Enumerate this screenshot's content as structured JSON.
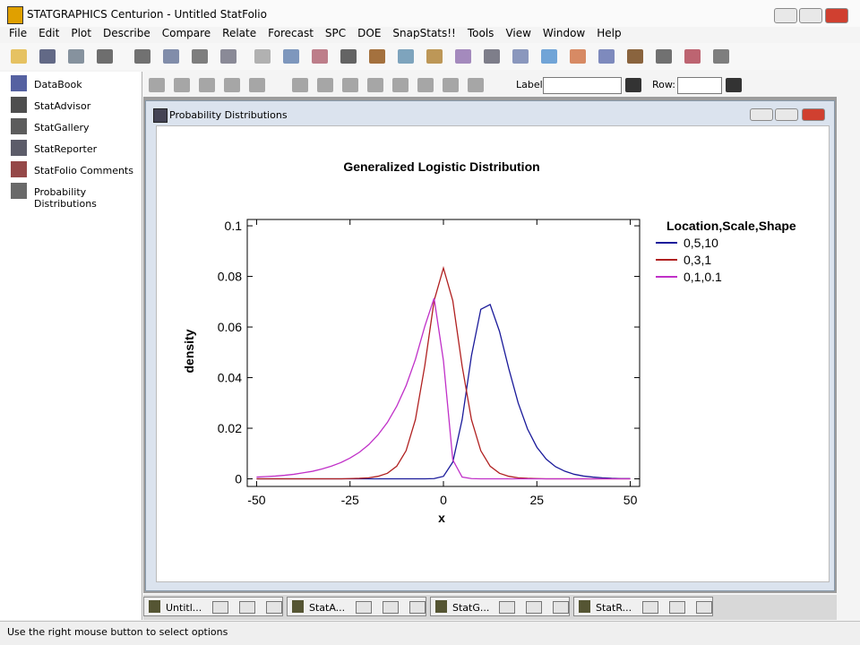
{
  "window": {
    "title": "STATGRAPHICS Centurion - Untitled StatFolio"
  },
  "menu": [
    "File",
    "Edit",
    "Plot",
    "Describe",
    "Compare",
    "Relate",
    "Forecast",
    "SPC",
    "DOE",
    "SnapStats!!",
    "Tools",
    "View",
    "Window",
    "Help"
  ],
  "sidebar": [
    "DataBook",
    "StatAdvisor",
    "StatGallery",
    "StatReporter",
    "StatFolio Comments",
    "Probability Distributions"
  ],
  "toolbar": {
    "label": "Label:",
    "row": "Row:"
  },
  "child_window": {
    "title": "Probability Distributions"
  },
  "chart_data": {
    "type": "line",
    "title": "Generalized Logistic Distribution",
    "x_label": "x",
    "y_label": "density",
    "legend_title": "Location,Scale,Shape",
    "legend": "right",
    "x": [
      -50,
      -47.5,
      -45,
      -42.5,
      -40,
      -37.5,
      -35,
      -32.5,
      -30,
      -27.5,
      -25,
      -22.5,
      -20,
      -17.5,
      -15,
      -12.5,
      -10,
      -7.5,
      -5,
      -2.5,
      0,
      2.5,
      5,
      7.5,
      10,
      12.5,
      15,
      17.5,
      20,
      22.5,
      25,
      27.5,
      30,
      32.5,
      35,
      37.5,
      40,
      42.5,
      45,
      47.5,
      50
    ],
    "series": [
      {
        "name": "0,5,10",
        "color": "#1a1a9a",
        "values": [
          0,
          0,
          0,
          0,
          0,
          0,
          0,
          0,
          0,
          0,
          0,
          0,
          0,
          0,
          0,
          0,
          0,
          0,
          0,
          0.0001,
          0.001,
          0.0066,
          0.0234,
          0.0487,
          0.067,
          0.0689,
          0.0583,
          0.0435,
          0.03,
          0.0197,
          0.0125,
          0.0078,
          0.0048,
          0.003,
          0.0018,
          0.0011,
          0.0007,
          0.0004,
          0.0002,
          0.0001,
          0.0001
        ]
      },
      {
        "name": "0,3,1",
        "color": "#b02020",
        "values": [
          0,
          0,
          0,
          0,
          0,
          0,
          0,
          0,
          0,
          0,
          0.0001,
          0.0002,
          0.0004,
          0.001,
          0.0022,
          0.005,
          0.0111,
          0.0234,
          0.0446,
          0.0704,
          0.0833,
          0.0704,
          0.0446,
          0.0234,
          0.0111,
          0.005,
          0.0022,
          0.001,
          0.0004,
          0.0002,
          0.0001,
          0,
          0,
          0,
          0,
          0,
          0,
          0,
          0,
          0,
          0
        ]
      },
      {
        "name": "0,1,0.1",
        "color": "#c030c8",
        "values": [
          0.0007,
          0.0009,
          0.0011,
          0.0014,
          0.0018,
          0.0024,
          0.003,
          0.0039,
          0.005,
          0.0064,
          0.0082,
          0.0105,
          0.0135,
          0.0174,
          0.0223,
          0.0287,
          0.0368,
          0.0472,
          0.0602,
          0.0714,
          0.0467,
          0.0075,
          0.0007,
          0.0001,
          0,
          0,
          0,
          0,
          0,
          0,
          0,
          0,
          0,
          0,
          0,
          0,
          0,
          0,
          0,
          0,
          0
        ]
      }
    ],
    "xlim": [
      -52.5,
      52.5
    ],
    "ylim": [
      -0.003,
      0.1025
    ],
    "xticks": [
      -50,
      -25,
      0,
      25,
      50
    ],
    "yticks": [
      0,
      0.02,
      0.04,
      0.06,
      0.08,
      0.1
    ]
  },
  "taskbar": [
    "Untitl...",
    "StatA...",
    "StatG...",
    "StatR..."
  ],
  "status": "Use the right mouse button to select options"
}
